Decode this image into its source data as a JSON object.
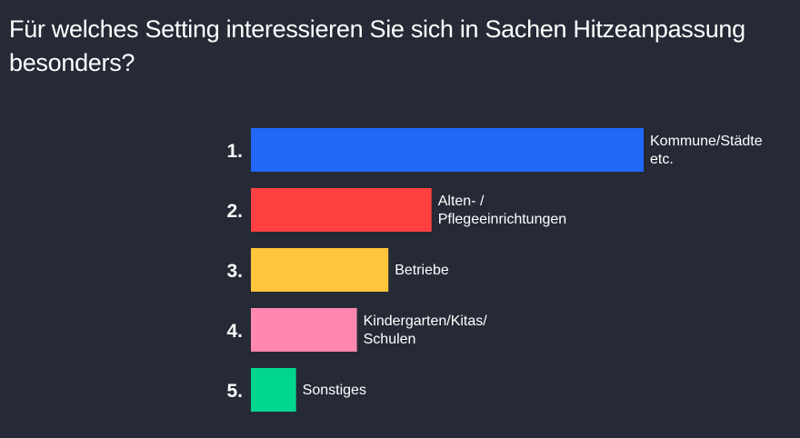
{
  "question": {
    "title": "Für welches Setting interessieren Sie sich in Sachen Hitzeanpassung besonders?"
  },
  "chart_data": {
    "type": "bar",
    "orientation": "horizontal",
    "title": "Für welches Setting interessieren Sie sich in Sachen Hitzeanpassung besonders?",
    "categories": [
      "Kommune/Städte etc.",
      "Alten- / Pflegeeinrichtungen",
      "Betriebe",
      "Kindergarten/Kitas/ Schulen",
      "Sonstiges"
    ],
    "label_lines": [
      [
        "Kommune/Städte",
        "etc."
      ],
      [
        "Alten- /",
        "Pflegeeinrichtungen"
      ],
      [
        "Betriebe"
      ],
      [
        "Kindergarten/Kitas/",
        "Schulen"
      ],
      [
        "Sonstiges"
      ]
    ],
    "ranks": [
      "1.",
      "2.",
      "3.",
      "4.",
      "5."
    ],
    "values": [
      100,
      46,
      35,
      27,
      11.5
    ],
    "colors": [
      "#2168f8",
      "#ff4041",
      "#ffc53d",
      "#ff88b1",
      "#00d690"
    ],
    "xlim": [
      0,
      100
    ],
    "grid": false,
    "legend": "none"
  }
}
